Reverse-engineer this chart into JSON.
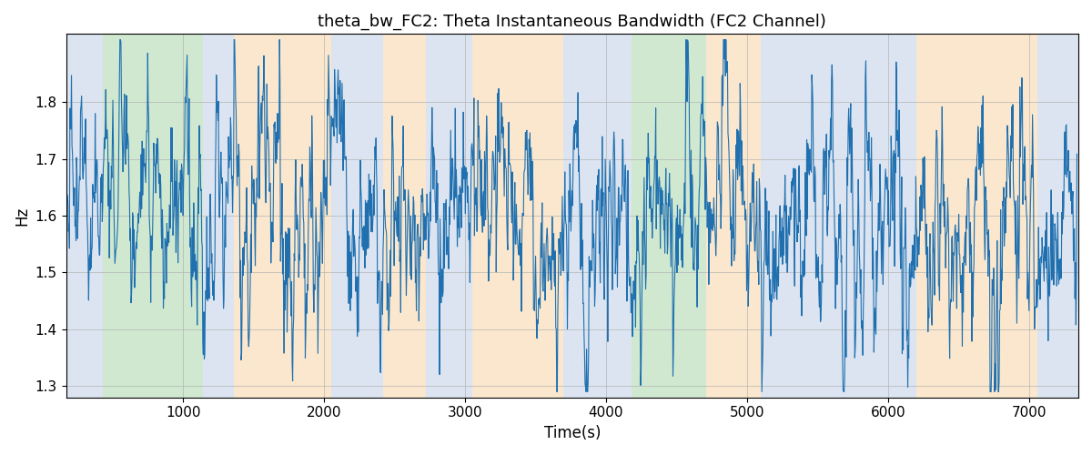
{
  "title": "theta_bw_FC2: Theta Instantaneous Bandwidth (FC2 Channel)",
  "xlabel": "Time(s)",
  "ylabel": "Hz",
  "xlim": [
    170,
    7350
  ],
  "ylim": [
    1.28,
    1.92
  ],
  "yticks": [
    1.3,
    1.4,
    1.5,
    1.6,
    1.7,
    1.8
  ],
  "xticks": [
    1000,
    2000,
    3000,
    4000,
    5000,
    6000,
    7000
  ],
  "line_color": "#2070b0",
  "line_width": 0.8,
  "bg_bands": [
    {
      "start": 170,
      "end": 430,
      "color": "#aabfdd"
    },
    {
      "start": 430,
      "end": 1140,
      "color": "#8ec98e"
    },
    {
      "start": 1140,
      "end": 1360,
      "color": "#aabfdd"
    },
    {
      "start": 1360,
      "end": 2050,
      "color": "#f5c88a"
    },
    {
      "start": 2050,
      "end": 2420,
      "color": "#aabfdd"
    },
    {
      "start": 2420,
      "end": 2720,
      "color": "#f5c88a"
    },
    {
      "start": 2720,
      "end": 3050,
      "color": "#aabfdd"
    },
    {
      "start": 3050,
      "end": 3700,
      "color": "#f5c88a"
    },
    {
      "start": 3700,
      "end": 4100,
      "color": "#aabfdd"
    },
    {
      "start": 4100,
      "end": 4180,
      "color": "#aabfdd"
    },
    {
      "start": 4180,
      "end": 4710,
      "color": "#8ec98e"
    },
    {
      "start": 4710,
      "end": 5100,
      "color": "#f5c88a"
    },
    {
      "start": 5100,
      "end": 6200,
      "color": "#aabfdd"
    },
    {
      "start": 6200,
      "end": 7060,
      "color": "#f5c88a"
    },
    {
      "start": 7060,
      "end": 7350,
      "color": "#aabfdd"
    }
  ],
  "band_alpha": 0.42,
  "grid_color": "#b0b0b0",
  "grid_alpha": 0.65,
  "seed": 42,
  "n_points": 2000,
  "x_start": 180,
  "x_end": 7340,
  "mean": 1.595,
  "ar_coef": 0.83,
  "noise_std": 0.048,
  "spike_prob": 0.055,
  "spike_min": 0.07,
  "spike_max": 0.19,
  "hf_std": 0.032,
  "min_clip": 1.29,
  "max_clip": 1.91
}
